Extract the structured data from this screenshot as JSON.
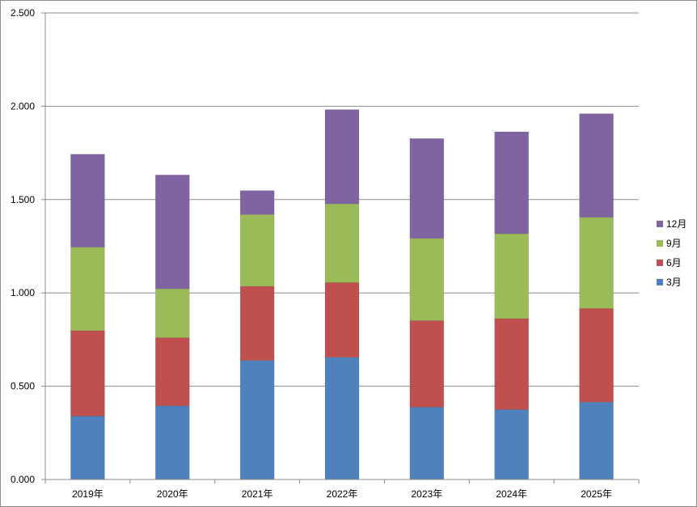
{
  "chart_data": {
    "type": "bar",
    "stacked": true,
    "categories": [
      "2019年",
      "2020年",
      "2021年",
      "2022年",
      "2023年",
      "2024年",
      "2025年"
    ],
    "series": [
      {
        "name": "3月",
        "color": "#4F81BD",
        "values": [
          0.34,
          0.395,
          0.638,
          0.655,
          0.388,
          0.375,
          0.415
        ]
      },
      {
        "name": "6月",
        "color": "#C0504D",
        "values": [
          0.458,
          0.365,
          0.397,
          0.4,
          0.464,
          0.487,
          0.502
        ]
      },
      {
        "name": "9月",
        "color": "#9BBB59",
        "values": [
          0.447,
          0.262,
          0.385,
          0.422,
          0.44,
          0.455,
          0.488
        ]
      },
      {
        "name": "12月",
        "color": "#8064A2",
        "values": [
          0.498,
          0.61,
          0.128,
          0.505,
          0.535,
          0.546,
          0.555
        ]
      }
    ],
    "yticks": [
      "0.000",
      "0.500",
      "1.000",
      "1.500",
      "2.000",
      "2.500"
    ],
    "ylim": [
      0,
      2.5
    ],
    "grid": true,
    "legend_position": "right",
    "title": "",
    "xlabel": "",
    "ylabel": ""
  }
}
